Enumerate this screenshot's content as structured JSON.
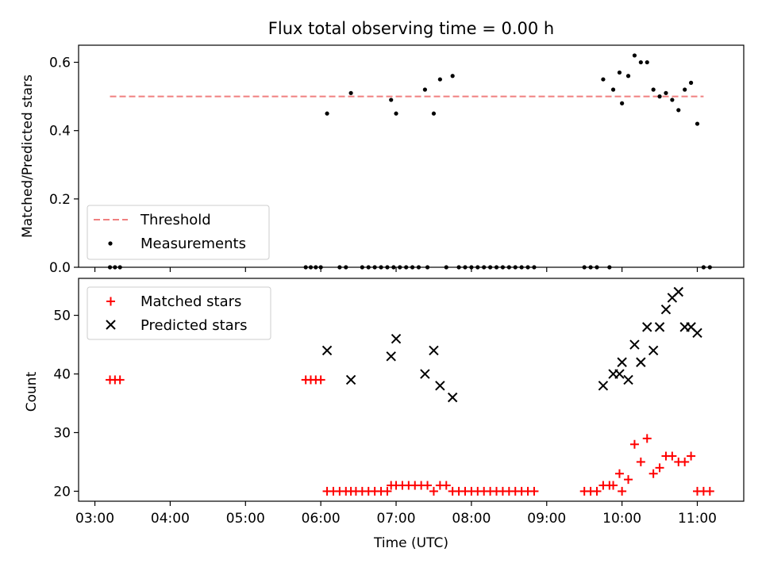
{
  "colors": {
    "threshold": "#f08080",
    "measurements": "#000000",
    "matched": "#ff0000",
    "predicted": "#000000"
  },
  "chart_data": [
    {
      "type": "scatter",
      "title": "Flux total observing time = 0.00 h",
      "xlabel": "",
      "ylabel": "Matched/Predicted stars",
      "ylim": [
        0,
        0.65
      ],
      "yticks": [
        "0.0",
        "0.2",
        "0.4",
        "0.6"
      ],
      "ytick_values": [
        0.0,
        0.2,
        0.4,
        0.6
      ],
      "grid": false,
      "legend_position": "bottom-left",
      "threshold": {
        "name": "Threshold",
        "value": 0.5,
        "x_range": [
          "03:12",
          "11:05"
        ]
      },
      "series": [
        {
          "name": "Measurements",
          "points": [
            [
              "03:12",
              0
            ],
            [
              "03:16",
              0
            ],
            [
              "03:20",
              0
            ],
            [
              "05:48",
              0
            ],
            [
              "05:52",
              0
            ],
            [
              "05:56",
              0
            ],
            [
              "06:00",
              0
            ],
            [
              "06:05",
              0.45
            ],
            [
              "06:15",
              0
            ],
            [
              "06:20",
              0
            ],
            [
              "06:24",
              0.51
            ],
            [
              "06:33",
              0
            ],
            [
              "06:38",
              0
            ],
            [
              "06:43",
              0
            ],
            [
              "06:48",
              0
            ],
            [
              "06:53",
              0
            ],
            [
              "06:58",
              0
            ],
            [
              "07:03",
              0
            ],
            [
              "06:56",
              0.49
            ],
            [
              "07:00",
              0.45
            ],
            [
              "07:08",
              0
            ],
            [
              "07:13",
              0
            ],
            [
              "07:18",
              0
            ],
            [
              "07:23",
              0.52
            ],
            [
              "07:25",
              0
            ],
            [
              "07:30",
              0.45
            ],
            [
              "07:35",
              0.55
            ],
            [
              "07:40",
              0
            ],
            [
              "07:45",
              0.56
            ],
            [
              "07:50",
              0
            ],
            [
              "07:55",
              0
            ],
            [
              "08:00",
              0
            ],
            [
              "08:05",
              0
            ],
            [
              "08:10",
              0
            ],
            [
              "08:15",
              0
            ],
            [
              "08:20",
              0
            ],
            [
              "08:25",
              0
            ],
            [
              "08:30",
              0
            ],
            [
              "08:35",
              0
            ],
            [
              "08:40",
              0
            ],
            [
              "08:45",
              0
            ],
            [
              "08:50",
              0
            ],
            [
              "09:30",
              0
            ],
            [
              "09:35",
              0
            ],
            [
              "09:40",
              0
            ],
            [
              "09:45",
              0.55
            ],
            [
              "09:50",
              0
            ],
            [
              "09:53",
              0.52
            ],
            [
              "09:58",
              0.57
            ],
            [
              "10:00",
              0.48
            ],
            [
              "10:05",
              0.56
            ],
            [
              "10:10",
              0.62
            ],
            [
              "10:15",
              0.6
            ],
            [
              "10:20",
              0.6
            ],
            [
              "10:25",
              0.52
            ],
            [
              "10:30",
              0.5
            ],
            [
              "10:35",
              0.51
            ],
            [
              "10:40",
              0.49
            ],
            [
              "10:45",
              0.46
            ],
            [
              "10:50",
              0.52
            ],
            [
              "10:55",
              0.54
            ],
            [
              "11:00",
              0.42
            ],
            [
              "11:05",
              0
            ],
            [
              "11:10",
              0
            ]
          ]
        }
      ]
    },
    {
      "type": "scatter",
      "title": "",
      "xlabel": "Time (UTC)",
      "ylabel": "Count",
      "ylim": [
        18.3,
        56.3
      ],
      "yticks": [
        "20",
        "30",
        "40",
        "50"
      ],
      "ytick_values": [
        20,
        30,
        40,
        50
      ],
      "xlim": [
        "02:47",
        "11:37"
      ],
      "xticks": [
        "03:00",
        "04:00",
        "05:00",
        "06:00",
        "07:00",
        "08:00",
        "09:00",
        "10:00",
        "11:00"
      ],
      "grid": false,
      "legend_position": "top-left",
      "series": [
        {
          "name": "Matched stars",
          "points": [
            [
              "03:12",
              39
            ],
            [
              "03:16",
              39
            ],
            [
              "03:20",
              39
            ],
            [
              "05:48",
              39
            ],
            [
              "05:52",
              39
            ],
            [
              "05:56",
              39
            ],
            [
              "06:00",
              39
            ],
            [
              "06:05",
              20
            ],
            [
              "06:10",
              20
            ],
            [
              "06:15",
              20
            ],
            [
              "06:20",
              20
            ],
            [
              "06:24",
              20
            ],
            [
              "06:28",
              20
            ],
            [
              "06:33",
              20
            ],
            [
              "06:38",
              20
            ],
            [
              "06:43",
              20
            ],
            [
              "06:48",
              20
            ],
            [
              "06:53",
              20
            ],
            [
              "06:56",
              21
            ],
            [
              "07:00",
              21
            ],
            [
              "07:05",
              21
            ],
            [
              "07:10",
              21
            ],
            [
              "07:15",
              21
            ],
            [
              "07:20",
              21
            ],
            [
              "07:25",
              21
            ],
            [
              "07:30",
              20
            ],
            [
              "07:35",
              21
            ],
            [
              "07:40",
              21
            ],
            [
              "07:45",
              20
            ],
            [
              "07:50",
              20
            ],
            [
              "07:55",
              20
            ],
            [
              "08:00",
              20
            ],
            [
              "08:05",
              20
            ],
            [
              "08:10",
              20
            ],
            [
              "08:15",
              20
            ],
            [
              "08:20",
              20
            ],
            [
              "08:25",
              20
            ],
            [
              "08:30",
              20
            ],
            [
              "08:35",
              20
            ],
            [
              "08:40",
              20
            ],
            [
              "08:45",
              20
            ],
            [
              "08:50",
              20
            ],
            [
              "09:30",
              20
            ],
            [
              "09:35",
              20
            ],
            [
              "09:40",
              20
            ],
            [
              "09:45",
              21
            ],
            [
              "09:50",
              21
            ],
            [
              "09:53",
              21
            ],
            [
              "09:58",
              23
            ],
            [
              "10:00",
              20
            ],
            [
              "10:05",
              22
            ],
            [
              "10:10",
              28
            ],
            [
              "10:15",
              25
            ],
            [
              "10:20",
              29
            ],
            [
              "10:25",
              23
            ],
            [
              "10:30",
              24
            ],
            [
              "10:35",
              26
            ],
            [
              "10:40",
              26
            ],
            [
              "10:45",
              25
            ],
            [
              "10:50",
              25
            ],
            [
              "10:55",
              26
            ],
            [
              "11:00",
              20
            ],
            [
              "11:05",
              20
            ],
            [
              "11:10",
              20
            ]
          ]
        },
        {
          "name": "Predicted stars",
          "points": [
            [
              "06:05",
              44
            ],
            [
              "06:24",
              39
            ],
            [
              "06:56",
              43
            ],
            [
              "07:00",
              46
            ],
            [
              "07:23",
              40
            ],
            [
              "07:30",
              44
            ],
            [
              "07:35",
              38
            ],
            [
              "07:45",
              36
            ],
            [
              "09:45",
              38
            ],
            [
              "09:53",
              40
            ],
            [
              "09:58",
              40
            ],
            [
              "10:00",
              42
            ],
            [
              "10:05",
              39
            ],
            [
              "10:10",
              45
            ],
            [
              "10:15",
              42
            ],
            [
              "10:20",
              48
            ],
            [
              "10:25",
              44
            ],
            [
              "10:30",
              48
            ],
            [
              "10:35",
              51
            ],
            [
              "10:40",
              53
            ],
            [
              "10:45",
              54
            ],
            [
              "10:50",
              48
            ],
            [
              "10:55",
              48
            ],
            [
              "11:00",
              47
            ]
          ]
        }
      ]
    }
  ]
}
